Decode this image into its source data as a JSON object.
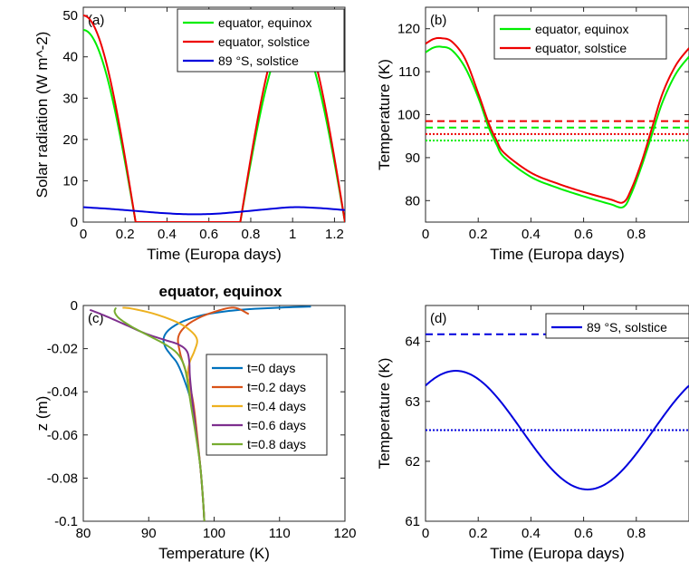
{
  "chart_data": [
    {
      "panel": "(a)",
      "type": "line",
      "xlabel": "Time (Europa days)",
      "ylabel": "Solar radiation (W m^-2)",
      "xlim": [
        0,
        1.25
      ],
      "ylim": [
        0,
        52
      ],
      "xticks": [
        "0",
        "0.2",
        "0.4",
        "0.6",
        "0.8",
        "1",
        "1.2"
      ],
      "yticks": [
        "0",
        "10",
        "20",
        "30",
        "40",
        "50"
      ],
      "legend_location": "top-right",
      "series": [
        {
          "name": "equator, equinox",
          "color": "#00ee00",
          "peak": 46.5,
          "period": 1.0,
          "peak_time": 0.0
        },
        {
          "name": "equator, solstice",
          "color": "#ee0000",
          "peak": 50.0,
          "period": 1.0,
          "peak_time": 0.0
        },
        {
          "name": "89 °S, solstice",
          "color": "#0000dd",
          "x": [
            0,
            0.125,
            0.25,
            0.375,
            0.5,
            0.625,
            0.75,
            0.875,
            1.0,
            1.125,
            1.25
          ],
          "y": [
            3.6,
            3.2,
            2.7,
            2.2,
            1.9,
            2.0,
            2.5,
            3.1,
            3.6,
            3.4,
            2.9
          ]
        }
      ]
    },
    {
      "panel": "(b)",
      "type": "line",
      "xlabel": "Time (Europa days)",
      "ylabel": "Temperature (K)",
      "xlim": [
        0,
        1
      ],
      "ylim": [
        75,
        125
      ],
      "xticks": [
        "0",
        "0.2",
        "0.4",
        "0.6",
        "0.8"
      ],
      "yticks": [
        "80",
        "90",
        "100",
        "110",
        "120"
      ],
      "legend_location": "top-right",
      "series": [
        {
          "name": "equator, equinox",
          "color": "#00ee00",
          "x": [
            0,
            0.03,
            0.06,
            0.1,
            0.15,
            0.2,
            0.24,
            0.27,
            0.3,
            0.4,
            0.5,
            0.6,
            0.7,
            0.75,
            0.78,
            0.82,
            0.86,
            0.9,
            0.95,
            1.0
          ],
          "y": [
            114.5,
            115.6,
            115.8,
            115.0,
            111.0,
            104.0,
            97.0,
            93.0,
            90.0,
            85.5,
            83.0,
            81.0,
            79.2,
            78.5,
            81.5,
            88.0,
            95.5,
            103.0,
            109.5,
            113.5
          ],
          "mean": 97.0,
          "min_line": 94.0
        },
        {
          "name": "equator, solstice",
          "color": "#ee0000",
          "x": [
            0,
            0.03,
            0.06,
            0.1,
            0.15,
            0.2,
            0.24,
            0.27,
            0.3,
            0.4,
            0.5,
            0.6,
            0.7,
            0.75,
            0.78,
            0.82,
            0.86,
            0.9,
            0.95,
            1.0
          ],
          "y": [
            116.5,
            117.6,
            117.8,
            117.0,
            113.0,
            105.0,
            98.0,
            94.0,
            91.0,
            86.5,
            84.0,
            82.0,
            80.3,
            79.6,
            82.5,
            89.0,
            97.0,
            105.0,
            111.5,
            115.5
          ],
          "mean": 98.5,
          "min_line": 95.5
        }
      ]
    },
    {
      "panel": "(c)",
      "title": "equator, equinox",
      "type": "line",
      "xlabel": "Temperature (K)",
      "ylabel": "z (m)",
      "xlim": [
        80,
        120
      ],
      "ylim": [
        -0.1,
        0
      ],
      "xticks": [
        "80",
        "90",
        "100",
        "110",
        "120"
      ],
      "yticks": [
        "-0.1",
        "-0.08",
        "-0.06",
        "-0.04",
        "-0.02",
        "0"
      ],
      "legend_location": "center-right",
      "series": [
        {
          "name": "t=0 days",
          "color": "#0072bd",
          "x": [
            114.8,
            110.0,
            104.0,
            99.0,
            95.5,
            93.2,
            92.3,
            92.5,
            93.4,
            94.4,
            95.5,
            96.5,
            97.3,
            97.9,
            98.3,
            98.5
          ],
          "y": [
            -0.0005,
            -0.001,
            -0.002,
            -0.004,
            -0.007,
            -0.011,
            -0.015,
            -0.019,
            -0.023,
            -0.027,
            -0.035,
            -0.045,
            -0.06,
            -0.075,
            -0.09,
            -0.1
          ]
        },
        {
          "name": "t=0.2 days",
          "color": "#d95319",
          "x": [
            105.3,
            103.0,
            100.0,
            97.5,
            95.5,
            94.5,
            94.8,
            95.4,
            96.1,
            96.8,
            97.4,
            97.9,
            98.3,
            98.5
          ],
          "y": [
            -0.004,
            -0.001,
            -0.003,
            -0.006,
            -0.01,
            -0.015,
            -0.022,
            -0.028,
            -0.035,
            -0.045,
            -0.06,
            -0.075,
            -0.09,
            -0.1
          ]
        },
        {
          "name": "t=0.4 days",
          "color": "#edb120",
          "x": [
            86.0,
            87.5,
            91.0,
            94.5,
            96.5,
            97.4,
            97.0,
            96.2,
            96.0,
            96.6,
            97.3,
            97.9,
            98.3,
            98.5
          ],
          "y": [
            -0.001,
            -0.0015,
            -0.004,
            -0.008,
            -0.012,
            -0.016,
            -0.021,
            -0.027,
            -0.034,
            -0.045,
            -0.06,
            -0.075,
            -0.09,
            -0.1
          ]
        },
        {
          "name": "t=0.6 days",
          "color": "#7e2f8e",
          "x": [
            81.0,
            83.5,
            86.5,
            89.5,
            92.5,
            94.5,
            95.8,
            96.2,
            96.3,
            96.7,
            97.3,
            97.9,
            98.3,
            98.5
          ],
          "y": [
            -0.002,
            -0.005,
            -0.009,
            -0.013,
            -0.016,
            -0.018,
            -0.021,
            -0.026,
            -0.033,
            -0.045,
            -0.06,
            -0.075,
            -0.09,
            -0.1
          ]
        },
        {
          "name": "t=0.8 days",
          "color": "#77ac30",
          "x": [
            85.0,
            84.8,
            85.5,
            87.5,
            90.0,
            92.5,
            94.3,
            95.3,
            95.8,
            96.4,
            97.2,
            97.9,
            98.3,
            98.5
          ],
          "y": [
            -0.001,
            -0.003,
            -0.006,
            -0.01,
            -0.014,
            -0.018,
            -0.022,
            -0.027,
            -0.033,
            -0.045,
            -0.06,
            -0.075,
            -0.09,
            -0.1
          ]
        }
      ]
    },
    {
      "panel": "(d)",
      "type": "line",
      "xlabel": "Time (Europa days)",
      "ylabel": "Temperature (K)",
      "xlim": [
        0,
        1
      ],
      "ylim": [
        61,
        64.6
      ],
      "xticks": [
        "0",
        "0.2",
        "0.4",
        "0.6",
        "0.8"
      ],
      "yticks": [
        "61",
        "62",
        "63",
        "64"
      ],
      "legend_location": "top-right",
      "series": [
        {
          "name": "89 °S, solstice",
          "color": "#0000dd",
          "mean_T": 62.52,
          "amplitude": 0.99,
          "max_time": 0.115,
          "mean": 64.12,
          "min_line": 62.52
        }
      ]
    }
  ]
}
